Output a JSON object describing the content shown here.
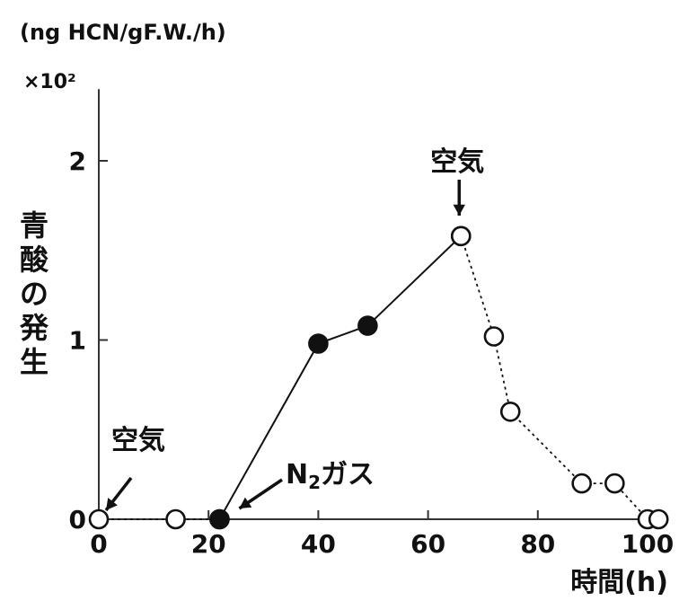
{
  "chart_data": {
    "type": "line",
    "unit_label": "(ng HCN/gF.W./h)",
    "scale_label": "×10²",
    "ylabel": "青酸の発生",
    "xlabel": "時間(h)",
    "xlim": [
      0,
      100
    ],
    "ylim": [
      0,
      2.4
    ],
    "xticks": [
      "0",
      "20",
      "40",
      "60",
      "80",
      "100"
    ],
    "yticks": [
      "0",
      "1",
      "2"
    ],
    "series": [
      {
        "condition": "air",
        "style": "open-circle-dotted",
        "x": [
          0,
          14,
          22
        ],
        "y": [
          0,
          0,
          0
        ]
      },
      {
        "condition": "N2",
        "style": "filled-circle-solid",
        "x": [
          22,
          40,
          49,
          66
        ],
        "y": [
          0,
          0.98,
          1.08,
          1.58
        ]
      },
      {
        "condition": "air",
        "style": "open-circle-dotted",
        "x": [
          66,
          72,
          75,
          88,
          94,
          100,
          102
        ],
        "y": [
          1.58,
          1.02,
          0.6,
          0.2,
          0.2,
          0,
          0
        ]
      }
    ],
    "annotations": [
      {
        "text": "空気",
        "x": 0,
        "y": 0
      },
      {
        "text_main": "N",
        "text_sub": "2",
        "text_rest": "ガス",
        "x": 22,
        "y": 0
      },
      {
        "text": "空気",
        "x": 66,
        "y": 1.58
      }
    ]
  }
}
